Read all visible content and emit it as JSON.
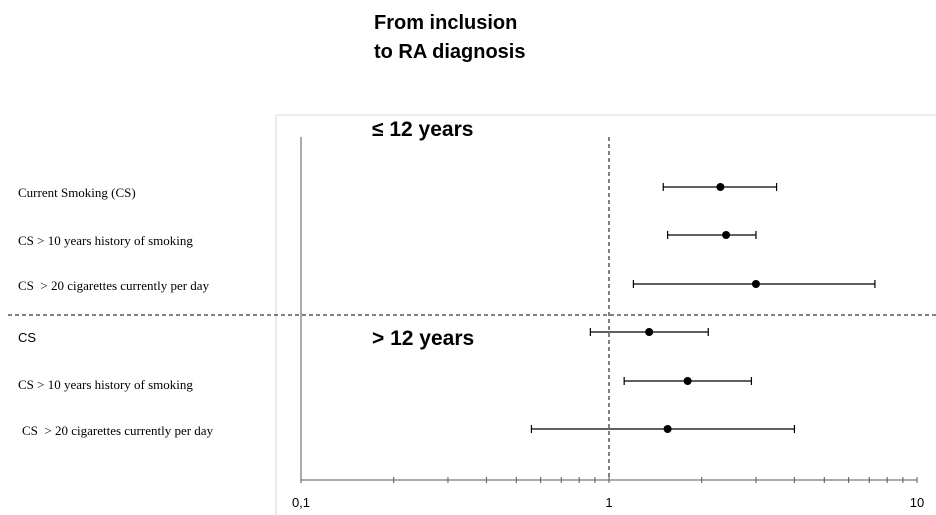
{
  "header": {
    "line1": "From inclusion",
    "line2": "to RA diagnosis"
  },
  "chart_data": {
    "type": "scatter",
    "subtype": "forest-plot",
    "x_scale": "log",
    "xlim": [
      0.1,
      10
    ],
    "x_tick_labels": [
      "0,1",
      "1",
      "10"
    ],
    "reference_line_x": 1,
    "groups": [
      {
        "label": "≤ 12 years",
        "rows": [
          {
            "label": "Current Smoking (CS)",
            "estimate": 2.3,
            "ci_low": 1.5,
            "ci_high": 3.5
          },
          {
            "label": "CS > 10 years history of smoking",
            "estimate": 2.4,
            "ci_low": 1.55,
            "ci_high": 3.0
          },
          {
            "label": "CS  > 20 cigarettes currently per day",
            "estimate": 3.0,
            "ci_low": 1.2,
            "ci_high": 7.3
          }
        ]
      },
      {
        "label": "> 12 years",
        "rows": [
          {
            "label": "CS",
            "estimate": 1.35,
            "ci_low": 0.87,
            "ci_high": 2.1
          },
          {
            "label": "CS > 10 years history of smoking",
            "estimate": 1.8,
            "ci_low": 1.12,
            "ci_high": 2.9
          },
          {
            "label": "CS  > 20 cigarettes currently per day",
            "estimate": 1.55,
            "ci_low": 0.56,
            "ci_high": 4.0
          }
        ]
      }
    ]
  }
}
